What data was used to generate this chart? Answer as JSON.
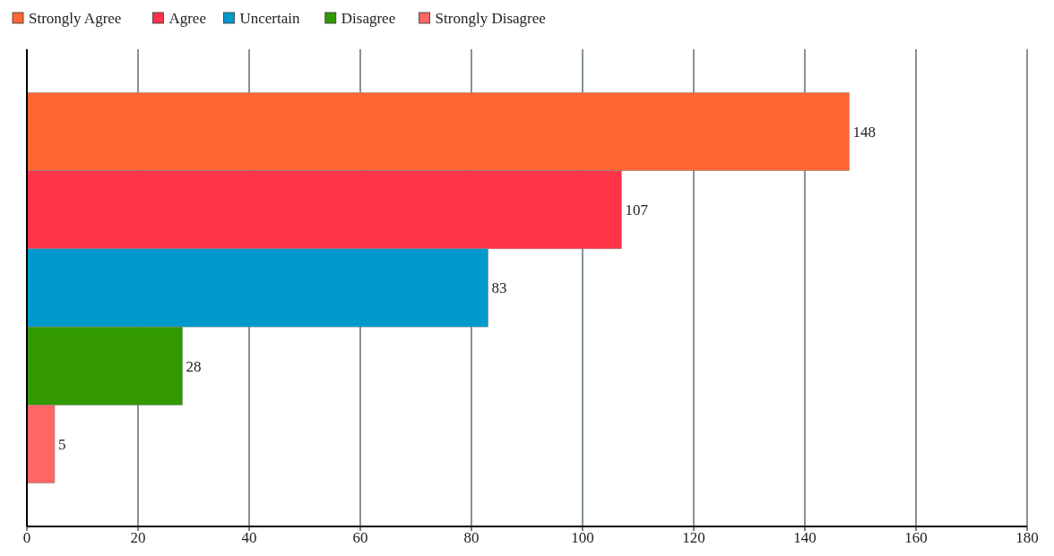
{
  "chart_data": {
    "type": "bar",
    "orientation": "horizontal",
    "categories": [
      null
    ],
    "series": [
      {
        "name": "Strongly Agree",
        "color": "#ff6633",
        "values": [
          148
        ]
      },
      {
        "name": "Agree",
        "color": "#ff3349",
        "values": [
          107
        ]
      },
      {
        "name": "Uncertain",
        "color": "#0099cc",
        "values": [
          83
        ]
      },
      {
        "name": "Disagree",
        "color": "#339900",
        "values": [
          28
        ]
      },
      {
        "name": "Strongly Disagree",
        "color": "#ff6666",
        "values": [
          5
        ]
      }
    ],
    "xlim": [
      0,
      180
    ],
    "xticks": [
      0,
      20,
      40,
      60,
      80,
      100,
      120,
      140,
      160,
      180
    ],
    "grid": "x",
    "legend": "top left",
    "data_labels": true
  }
}
